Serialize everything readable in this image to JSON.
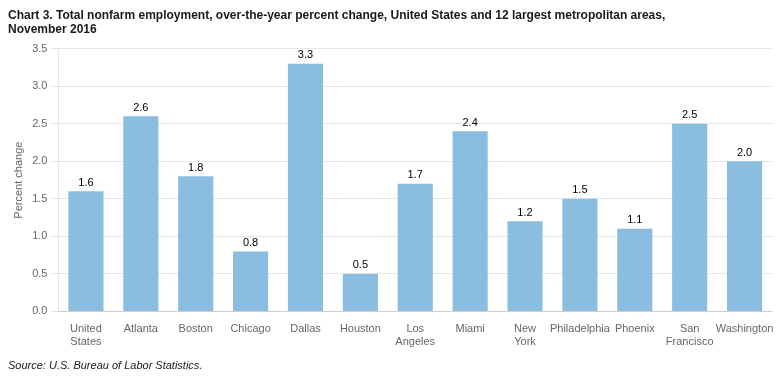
{
  "chart_data": {
    "type": "bar",
    "title": [
      "Chart 3. Total nonfarm employment, over-the-year percent change, United States and 12 largest metropolitan areas,",
      "November 2016"
    ],
    "ylabel": "Percent change",
    "annotations": [
      "Source: U.S. Bureau of Labor Statistics."
    ],
    "categories": [
      "United\nStates",
      "Atlanta",
      "Boston",
      "Chicago",
      "Dallas",
      "Houston",
      "Los\nAngeles",
      "Miami",
      "New\nYork",
      "Philadelphia",
      "Phoenix",
      "San\nFrancisco",
      "Washington"
    ],
    "values": [
      1.6,
      2.6,
      1.8,
      0.8,
      3.3,
      0.5,
      1.7,
      2.4,
      1.2,
      1.5,
      1.1,
      2.5,
      2.0
    ],
    "value_labels": [
      "1.6",
      "2.6",
      "1.8",
      "0.8",
      "3.3",
      "0.5",
      "1.7",
      "2.4",
      "1.2",
      "1.5",
      "1.1",
      "2.5",
      "2.0"
    ],
    "data_labels": true,
    "color": "#8bbde0",
    "ylim": [
      0,
      3.5
    ],
    "yticks": [
      {
        "value": 0,
        "label": "0.0"
      },
      0.5,
      {
        "value": 1,
        "label": "1.0"
      },
      1.5,
      {
        "value": 2,
        "label": "2.0"
      },
      2.5,
      {
        "value": 3,
        "label": "3.0"
      },
      3.5
    ],
    "grid": true
  }
}
